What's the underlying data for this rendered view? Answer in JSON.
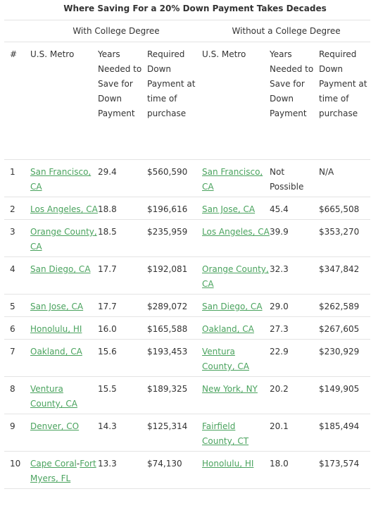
{
  "title": "Where Saving For a 20% Down Payment Takes Decades",
  "groups": {
    "with_degree": "With College Degree",
    "without_degree": "Without a College Degree"
  },
  "headers": {
    "num": "#",
    "metro_a": "U.S. Metro",
    "years_a": "Years Needed to Save for Down Payment",
    "payment_a": "Required Down Payment at time of purchase",
    "metro_b": "U.S. Metro",
    "years_b": "Years Needed to Save for Down Payment",
    "payment_b": "Required Down Payment at time of purchase"
  },
  "rows": [
    {
      "num": "1",
      "metro_a": "San Francisco, CA",
      "years_a": "29.4",
      "payment_a": "$560,590",
      "metro_b": "San Francisco, CA",
      "years_b": "Not Possible",
      "payment_b": "N/A"
    },
    {
      "num": "2",
      "metro_a": "Los Angeles, CA",
      "years_a": "18.8",
      "payment_a": "$196,616",
      "metro_b": "San Jose, CA",
      "years_b": "45.4",
      "payment_b": "$665,508"
    },
    {
      "num": "3",
      "metro_a": "Orange County, CA",
      "years_a": "18.5",
      "payment_a": "$235,959",
      "metro_b": "Los Angeles, CA",
      "years_b": "39.9",
      "payment_b": "$353,270"
    },
    {
      "num": "4",
      "metro_a": "San Diego, CA",
      "years_a": "17.7",
      "payment_a": "$192,081",
      "metro_b": "Orange County, CA",
      "years_b": "32.3",
      "payment_b": "$347,842"
    },
    {
      "num": "5",
      "metro_a": "San Jose, CA",
      "years_a": "17.7",
      "payment_a": "$289,072",
      "metro_b": "San Diego, CA",
      "years_b": "29.0",
      "payment_b": "$262,589"
    },
    {
      "num": "6",
      "metro_a": "Honolulu, HI",
      "years_a": "16.0",
      "payment_a": "$165,588",
      "metro_b": "Oakland, CA",
      "years_b": "27.3",
      "payment_b": "$267,605"
    },
    {
      "num": "7",
      "metro_a": "Oakland, CA",
      "years_a": "15.6",
      "payment_a": "$193,453",
      "metro_b": "Ventura County, CA",
      "years_b": "22.9",
      "payment_b": "$230,929"
    },
    {
      "num": "8",
      "metro_a": "Ventura County, CA",
      "years_a": "15.5",
      "payment_a": "$189,325",
      "metro_b": "New York, NY",
      "years_b": "20.2",
      "payment_b": "$149,905"
    },
    {
      "num": "9",
      "metro_a": "Denver, CO",
      "years_a": "14.3",
      "payment_a": "$125,314",
      "metro_b": "Fairfield County, CT",
      "years_b": "20.1",
      "payment_b": "$185,494"
    },
    {
      "num": "10",
      "metro_a_link": "Cape Coral",
      "metro_a_tail": "-",
      "metro_a_link2": "Fort Myers, FL",
      "years_a": "13.3",
      "payment_a": "$74,130",
      "metro_b": "Honolulu, HI",
      "years_b": "18.0",
      "payment_b": "$173,574"
    }
  ],
  "colors": {
    "link": "#4aa35e",
    "text": "#333333",
    "rule": "#e4e4e4"
  }
}
